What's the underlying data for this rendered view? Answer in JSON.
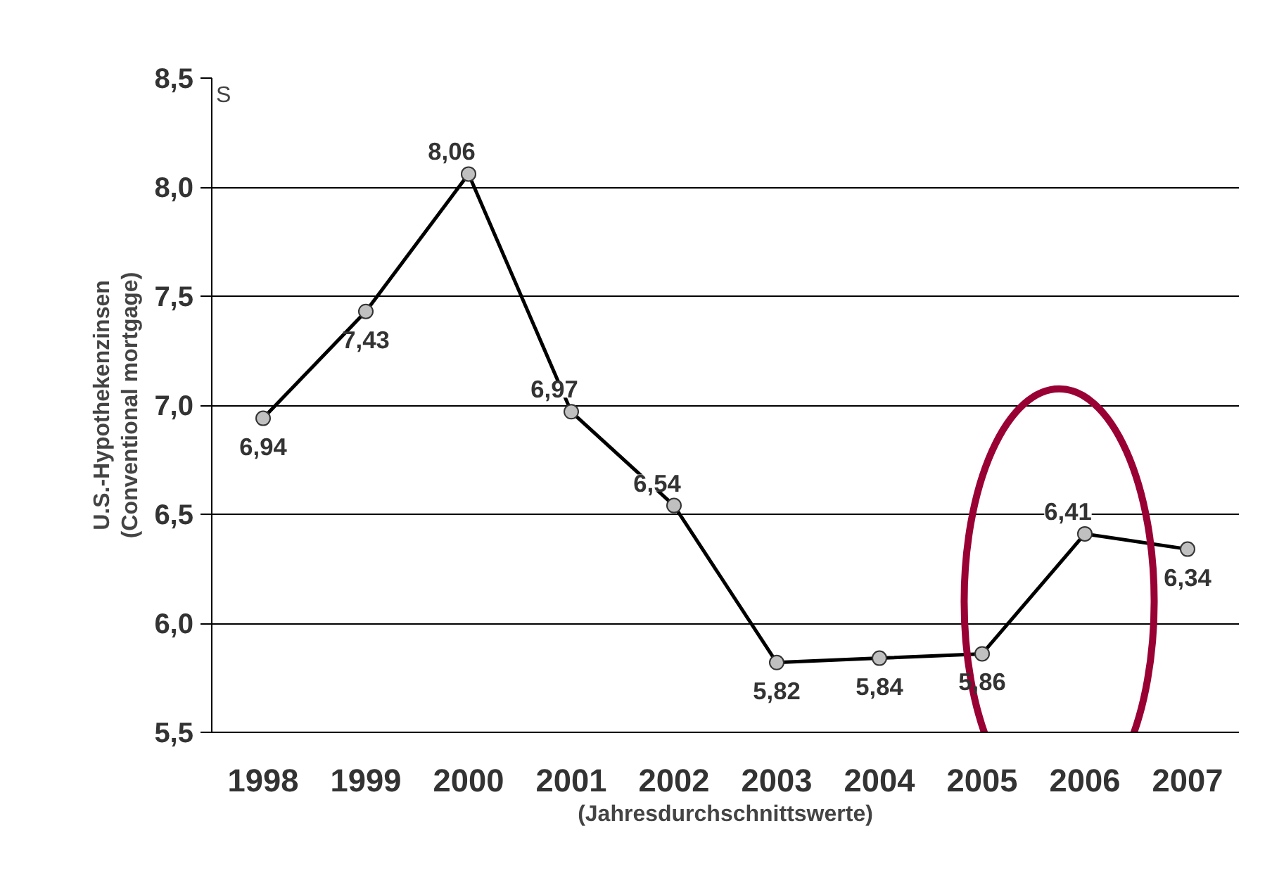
{
  "chart_data": {
    "type": "line",
    "xlabel": "(Jahresdurchschnittswerte)",
    "ylabel": "U.S.-Hypothekenzinsen\n(Conventional mortgage)",
    "categories": [
      "1998",
      "1999",
      "2000",
      "2001",
      "2002",
      "2003",
      "2004",
      "2005",
      "2006",
      "2007"
    ],
    "series": [
      {
        "color": "#000000",
        "values": [
          6.94,
          7.43,
          8.06,
          6.97,
          6.54,
          5.82,
          5.84,
          5.86,
          6.41,
          6.34
        ],
        "value_labels": [
          "6,94",
          "7,43",
          "8,06",
          "6,97",
          "6,54",
          "5,82",
          "5,84",
          "5,86",
          "6,41",
          "6,34"
        ]
      }
    ],
    "ylim": [
      5.5,
      8.5
    ],
    "yticks": [
      {
        "value": 5.5,
        "label": "5,5"
      },
      {
        "value": 6.0,
        "label": "6,0"
      },
      {
        "value": 6.5,
        "label": "6,5"
      },
      {
        "value": 7.0,
        "label": "7,0"
      },
      {
        "value": 7.5,
        "label": "7,5"
      },
      {
        "value": 8.0,
        "label": "8,0"
      },
      {
        "value": 8.5,
        "label": "8,5"
      }
    ],
    "grid": "y",
    "marker": "circle",
    "line_style": "solid",
    "annotations": [
      "S"
    ]
  }
}
